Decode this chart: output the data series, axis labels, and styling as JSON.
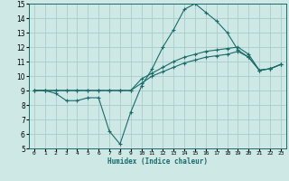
{
  "xlabel": "Humidex (Indice chaleur)",
  "bg_color": "#cde8e5",
  "grid_color": "#aaccca",
  "line_color": "#1a6b6b",
  "xlim": [
    -0.5,
    23.5
  ],
  "ylim": [
    5,
    15
  ],
  "xticks": [
    0,
    1,
    2,
    3,
    4,
    5,
    6,
    7,
    8,
    9,
    10,
    11,
    12,
    13,
    14,
    15,
    16,
    17,
    18,
    19,
    20,
    21,
    22,
    23
  ],
  "yticks": [
    5,
    6,
    7,
    8,
    9,
    10,
    11,
    12,
    13,
    14,
    15
  ],
  "line1_x": [
    0,
    1,
    2,
    3,
    4,
    5,
    6,
    7,
    8,
    9,
    10,
    11,
    12,
    13,
    14,
    15,
    16,
    17,
    18,
    19,
    20,
    21,
    22,
    23
  ],
  "line1_y": [
    9.0,
    9.0,
    8.8,
    8.3,
    8.3,
    8.5,
    8.5,
    6.2,
    5.3,
    7.5,
    9.3,
    10.5,
    12.0,
    13.2,
    14.6,
    15.0,
    14.4,
    13.8,
    13.0,
    11.8,
    11.3,
    10.4,
    10.5,
    10.8
  ],
  "line2_x": [
    0,
    1,
    2,
    3,
    4,
    5,
    6,
    7,
    8,
    9,
    10,
    11,
    12,
    13,
    14,
    15,
    16,
    17,
    18,
    19,
    20,
    21,
    22,
    23
  ],
  "line2_y": [
    9.0,
    9.0,
    9.0,
    9.0,
    9.0,
    9.0,
    9.0,
    9.0,
    9.0,
    9.0,
    9.5,
    10.0,
    10.3,
    10.6,
    10.9,
    11.1,
    11.3,
    11.4,
    11.5,
    11.7,
    11.3,
    10.4,
    10.5,
    10.8
  ],
  "line3_x": [
    0,
    1,
    2,
    3,
    4,
    5,
    6,
    7,
    8,
    9,
    10,
    11,
    12,
    13,
    14,
    15,
    16,
    17,
    18,
    19,
    20,
    21,
    22,
    23
  ],
  "line3_y": [
    9.0,
    9.0,
    9.0,
    9.0,
    9.0,
    9.0,
    9.0,
    9.0,
    9.0,
    9.0,
    9.8,
    10.2,
    10.6,
    11.0,
    11.3,
    11.5,
    11.7,
    11.8,
    11.9,
    12.0,
    11.5,
    10.4,
    10.5,
    10.8
  ]
}
